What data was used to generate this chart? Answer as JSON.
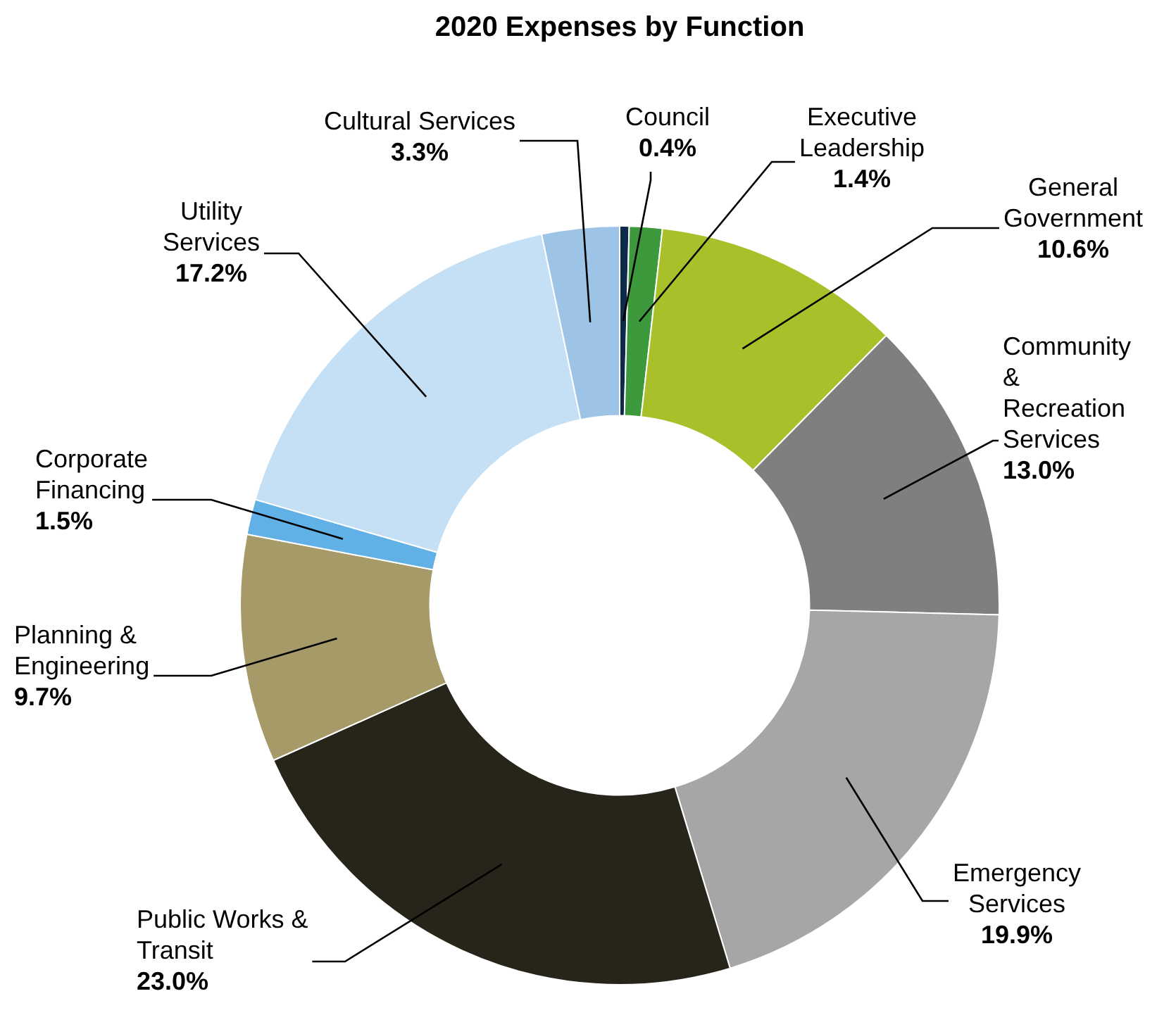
{
  "chart_data": {
    "type": "donut",
    "title": "2020 Expenses by Function",
    "categories": [
      "Council",
      "Executive Leadership",
      "General Government",
      "Community & Recreation Services",
      "Emergency Services",
      "Public Works & Transit",
      "Planning & Engineering",
      "Corporate Financing",
      "Utility Services",
      "Cultural Services"
    ],
    "values": [
      0.4,
      1.4,
      10.6,
      13.0,
      19.9,
      23.0,
      9.7,
      1.5,
      17.2,
      3.3
    ],
    "value_labels": [
      "0.4%",
      "1.4%",
      "10.6%",
      "13.0%",
      "19.9%",
      "23.0%",
      "9.7%",
      "1.5%",
      "17.2%",
      "3.3%"
    ],
    "colors": [
      "#0d2a4a",
      "#3c9a3c",
      "#a9c02b",
      "#7f7f7f",
      "#a6a6a6",
      "#27241a",
      "#a59a68",
      "#62b1e6",
      "#c5e0f4",
      "#9dc3e6"
    ],
    "legend": false
  }
}
